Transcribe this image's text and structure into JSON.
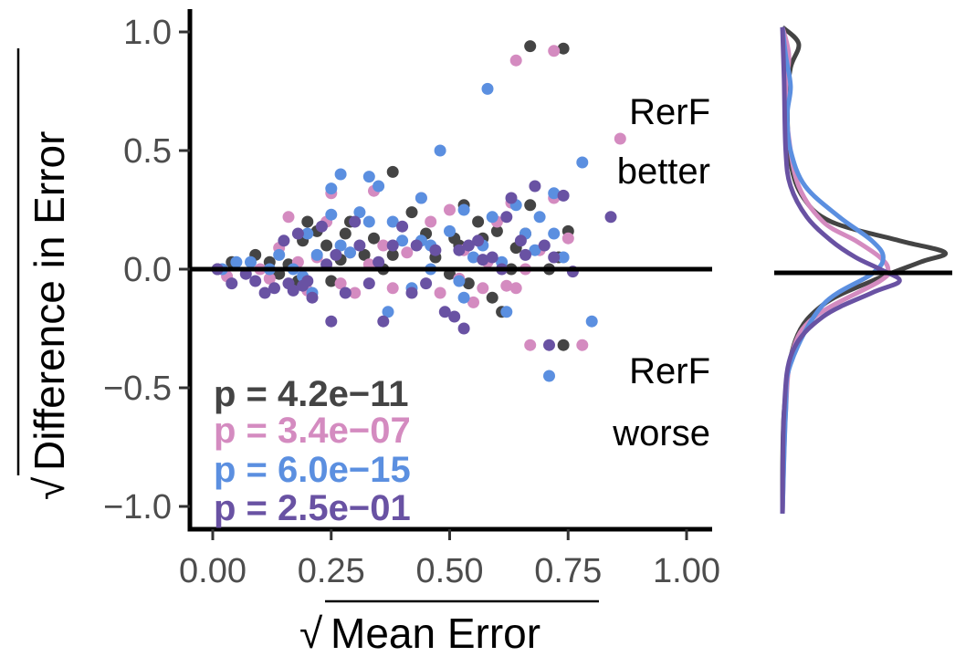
{
  "chart_data": [
    {
      "type": "scatter",
      "title": "",
      "xlabel": "Mean Error",
      "ylabel": "Difference in Error",
      "xlabel_prefix": "√",
      "ylabel_prefix": "√",
      "xlim": [
        -0.05,
        1.05
      ],
      "ylim": [
        -1.1,
        1.1
      ],
      "x_ticks": [
        0.0,
        0.25,
        0.5,
        0.75,
        1.0
      ],
      "x_tick_labels": [
        "0.00",
        "0.25",
        "0.50",
        "0.75",
        "1.00"
      ],
      "y_ticks": [
        1.0,
        0.5,
        0.0,
        -0.5,
        -1.0
      ],
      "y_tick_labels": [
        "1.0",
        "0.5",
        "0.0",
        "−0.5",
        "−1.0"
      ],
      "reference_line_y": 0,
      "grid": false,
      "annotations": {
        "better": [
          "RerF",
          "better"
        ],
        "worse": [
          "RerF",
          "worse"
        ]
      },
      "pvalues": [
        {
          "label": "p = 4.2e−11",
          "color": "#444444"
        },
        {
          "label": "p = 3.4e−07",
          "color": "#d48bc0"
        },
        {
          "label": "p = 6.0e−15",
          "color": "#5b8fe0"
        },
        {
          "label": "p = 2.5e−01",
          "color": "#6952a3"
        }
      ],
      "series": [
        {
          "color": "#444444",
          "points": [
            [
              0.01,
              0.0
            ],
            [
              0.04,
              0.03
            ],
            [
              0.09,
              0.06
            ],
            [
              0.12,
              0.03
            ],
            [
              0.14,
              -0.02
            ],
            [
              0.16,
              0.02
            ],
            [
              0.18,
              -0.05
            ],
            [
              0.19,
              0.12
            ],
            [
              0.2,
              0.2
            ],
            [
              0.22,
              0.16
            ],
            [
              0.24,
              0.1
            ],
            [
              0.25,
              -0.05
            ],
            [
              0.27,
              0.04
            ],
            [
              0.28,
              0.15
            ],
            [
              0.29,
              0.2
            ],
            [
              0.32,
              0.06
            ],
            [
              0.34,
              0.13
            ],
            [
              0.36,
              0.0
            ],
            [
              0.38,
              0.06
            ],
            [
              0.38,
              0.41
            ],
            [
              0.42,
              0.24
            ],
            [
              0.45,
              0.15
            ],
            [
              0.47,
              0.05
            ],
            [
              0.5,
              -0.02
            ],
            [
              0.51,
              0.13
            ],
            [
              0.52,
              0.1
            ],
            [
              0.53,
              0.27
            ],
            [
              0.54,
              -0.06
            ],
            [
              0.56,
              0.2
            ],
            [
              0.57,
              0.13
            ],
            [
              0.59,
              -0.12
            ],
            [
              0.6,
              0.16
            ],
            [
              0.61,
              -0.18
            ],
            [
              0.63,
              0.0
            ],
            [
              0.64,
              0.09
            ],
            [
              0.66,
              0.15
            ],
            [
              0.67,
              0.27
            ],
            [
              0.67,
              0.94
            ],
            [
              0.71,
              0.0
            ],
            [
              0.73,
              0.05
            ],
            [
              0.74,
              -0.32
            ],
            [
              0.74,
              0.93
            ],
            [
              0.75,
              0.16
            ]
          ]
        },
        {
          "color": "#d48bc0",
          "points": [
            [
              0.03,
              -0.03
            ],
            [
              0.1,
              0.0
            ],
            [
              0.12,
              -0.04
            ],
            [
              0.14,
              0.09
            ],
            [
              0.16,
              0.22
            ],
            [
              0.18,
              0.03
            ],
            [
              0.2,
              -0.09
            ],
            [
              0.22,
              0.05
            ],
            [
              0.24,
              0.2
            ],
            [
              0.25,
              0.32
            ],
            [
              0.27,
              -0.06
            ],
            [
              0.29,
              0.07
            ],
            [
              0.3,
              -0.1
            ],
            [
              0.33,
              0.02
            ],
            [
              0.34,
              0.33
            ],
            [
              0.36,
              0.1
            ],
            [
              0.38,
              -0.08
            ],
            [
              0.41,
              0.07
            ],
            [
              0.44,
              0.3
            ],
            [
              0.46,
              0.2
            ],
            [
              0.48,
              -0.1
            ],
            [
              0.5,
              0.25
            ],
            [
              0.52,
              -0.04
            ],
            [
              0.53,
              0.08
            ],
            [
              0.55,
              -0.14
            ],
            [
              0.57,
              -0.08
            ],
            [
              0.58,
              0.03
            ],
            [
              0.6,
              0.2
            ],
            [
              0.62,
              -0.07
            ],
            [
              0.63,
              0.28
            ],
            [
              0.64,
              -0.08
            ],
            [
              0.64,
              0.88
            ],
            [
              0.66,
              0.0
            ],
            [
              0.67,
              -0.32
            ],
            [
              0.69,
              0.08
            ],
            [
              0.72,
              0.3
            ],
            [
              0.72,
              0.92
            ],
            [
              0.75,
              0.13
            ],
            [
              0.78,
              -0.32
            ],
            [
              0.86,
              0.55
            ]
          ]
        },
        {
          "color": "#5b8fe0",
          "points": [
            [
              0.02,
              0.0
            ],
            [
              0.05,
              0.03
            ],
            [
              0.08,
              0.03
            ],
            [
              0.12,
              0.0
            ],
            [
              0.14,
              0.06
            ],
            [
              0.17,
              0.0
            ],
            [
              0.19,
              -0.03
            ],
            [
              0.2,
              0.15
            ],
            [
              0.21,
              -0.1
            ],
            [
              0.22,
              0.06
            ],
            [
              0.25,
              0.23
            ],
            [
              0.25,
              0.34
            ],
            [
              0.27,
              0.1
            ],
            [
              0.27,
              0.4
            ],
            [
              0.29,
              0.07
            ],
            [
              0.31,
              0.24
            ],
            [
              0.33,
              0.2
            ],
            [
              0.33,
              0.39
            ],
            [
              0.35,
              0.35
            ],
            [
              0.37,
              -0.18
            ],
            [
              0.38,
              0.2
            ],
            [
              0.4,
              0.12
            ],
            [
              0.42,
              -0.08
            ],
            [
              0.44,
              0.12
            ],
            [
              0.44,
              0.3
            ],
            [
              0.46,
              0.1
            ],
            [
              0.46,
              0.0
            ],
            [
              0.48,
              0.5
            ],
            [
              0.5,
              0.16
            ],
            [
              0.52,
              -0.05
            ],
            [
              0.53,
              -0.12
            ],
            [
              0.53,
              0.25
            ],
            [
              0.55,
              0.05
            ],
            [
              0.57,
              0.1
            ],
            [
              0.58,
              0.76
            ],
            [
              0.59,
              0.22
            ],
            [
              0.61,
              0.03
            ],
            [
              0.62,
              -0.18
            ],
            [
              0.64,
              0.27
            ],
            [
              0.66,
              0.15
            ],
            [
              0.68,
              0.08
            ],
            [
              0.69,
              0.22
            ],
            [
              0.71,
              -0.45
            ],
            [
              0.72,
              0.15
            ],
            [
              0.72,
              0.32
            ],
            [
              0.74,
              0.05
            ],
            [
              0.78,
              0.45
            ],
            [
              0.8,
              -0.22
            ]
          ]
        },
        {
          "color": "#6952a3",
          "points": [
            [
              0.01,
              0.0
            ],
            [
              0.04,
              -0.06
            ],
            [
              0.07,
              -0.02
            ],
            [
              0.09,
              -0.05
            ],
            [
              0.11,
              -0.1
            ],
            [
              0.13,
              -0.08
            ],
            [
              0.15,
              0.12
            ],
            [
              0.16,
              -0.06
            ],
            [
              0.17,
              -0.09
            ],
            [
              0.18,
              0.15
            ],
            [
              0.19,
              -0.07
            ],
            [
              0.2,
              -0.05
            ],
            [
              0.21,
              -0.12
            ],
            [
              0.23,
              0.18
            ],
            [
              0.24,
              0.02
            ],
            [
              0.25,
              -0.22
            ],
            [
              0.26,
              0.06
            ],
            [
              0.28,
              -0.1
            ],
            [
              0.3,
              0.2
            ],
            [
              0.31,
              0.1
            ],
            [
              0.33,
              -0.06
            ],
            [
              0.35,
              0.03
            ],
            [
              0.36,
              -0.22
            ],
            [
              0.38,
              0.1
            ],
            [
              0.4,
              0.18
            ],
            [
              0.42,
              -0.1
            ],
            [
              0.43,
              0.1
            ],
            [
              0.45,
              -0.06
            ],
            [
              0.47,
              0.08
            ],
            [
              0.49,
              -0.18
            ],
            [
              0.51,
              -0.2
            ],
            [
              0.52,
              0.08
            ],
            [
              0.53,
              -0.25
            ],
            [
              0.54,
              0.1
            ],
            [
              0.56,
              0.12
            ],
            [
              0.57,
              0.04
            ],
            [
              0.59,
              0.05
            ],
            [
              0.61,
              0.0
            ],
            [
              0.62,
              0.22
            ],
            [
              0.63,
              0.3
            ],
            [
              0.65,
              0.12
            ],
            [
              0.66,
              0.06
            ],
            [
              0.68,
              0.35
            ],
            [
              0.7,
              0.1
            ],
            [
              0.71,
              -0.32
            ],
            [
              0.72,
              0.05
            ],
            [
              0.74,
              0.31
            ],
            [
              0.76,
              -0.01
            ],
            [
              0.84,
              0.22
            ]
          ]
        }
      ]
    },
    {
      "type": "area",
      "title": "",
      "xlabel": "",
      "ylabel": "",
      "ylim": [
        -1.1,
        1.1
      ],
      "reference_line_y": 0,
      "grid": false,
      "series": [
        {
          "color": "#444444",
          "density": [
            [
              -1.03,
              0.0
            ],
            [
              -0.6,
              0.01
            ],
            [
              -0.3,
              0.08
            ],
            [
              -0.15,
              0.25
            ],
            [
              -0.05,
              0.55
            ],
            [
              0.03,
              0.85
            ],
            [
              0.07,
              1.0
            ],
            [
              0.12,
              0.72
            ],
            [
              0.2,
              0.3
            ],
            [
              0.3,
              0.13
            ],
            [
              0.45,
              0.05
            ],
            [
              0.7,
              0.03
            ],
            [
              0.85,
              0.05
            ],
            [
              0.95,
              0.1
            ],
            [
              1.02,
              0.0
            ]
          ]
        },
        {
          "color": "#d48bc0",
          "density": [
            [
              -1.03,
              0.0
            ],
            [
              -0.6,
              0.02
            ],
            [
              -0.35,
              0.06
            ],
            [
              -0.2,
              0.2
            ],
            [
              -0.05,
              0.6
            ],
            [
              0.0,
              0.65
            ],
            [
              0.05,
              0.6
            ],
            [
              0.12,
              0.45
            ],
            [
              0.2,
              0.25
            ],
            [
              0.35,
              0.1
            ],
            [
              0.55,
              0.04
            ],
            [
              0.75,
              0.02
            ],
            [
              0.9,
              0.04
            ],
            [
              1.02,
              0.0
            ]
          ]
        },
        {
          "color": "#5b8fe0",
          "density": [
            [
              -1.03,
              0.0
            ],
            [
              -0.6,
              0.02
            ],
            [
              -0.4,
              0.05
            ],
            [
              -0.15,
              0.25
            ],
            [
              -0.02,
              0.55
            ],
            [
              0.05,
              0.62
            ],
            [
              0.12,
              0.55
            ],
            [
              0.22,
              0.35
            ],
            [
              0.35,
              0.14
            ],
            [
              0.5,
              0.05
            ],
            [
              0.65,
              0.03
            ],
            [
              0.77,
              0.05
            ],
            [
              0.9,
              0.02
            ],
            [
              1.02,
              0.0
            ]
          ]
        },
        {
          "color": "#6952a3",
          "density": [
            [
              -1.03,
              0.0
            ],
            [
              -0.6,
              0.01
            ],
            [
              -0.35,
              0.06
            ],
            [
              -0.2,
              0.25
            ],
            [
              -0.1,
              0.55
            ],
            [
              -0.05,
              0.72
            ],
            [
              0.0,
              0.6
            ],
            [
              0.05,
              0.45
            ],
            [
              0.12,
              0.3
            ],
            [
              0.22,
              0.15
            ],
            [
              0.35,
              0.05
            ],
            [
              0.5,
              0.02
            ],
            [
              0.8,
              0.01
            ],
            [
              1.02,
              0.0
            ]
          ]
        }
      ]
    }
  ]
}
